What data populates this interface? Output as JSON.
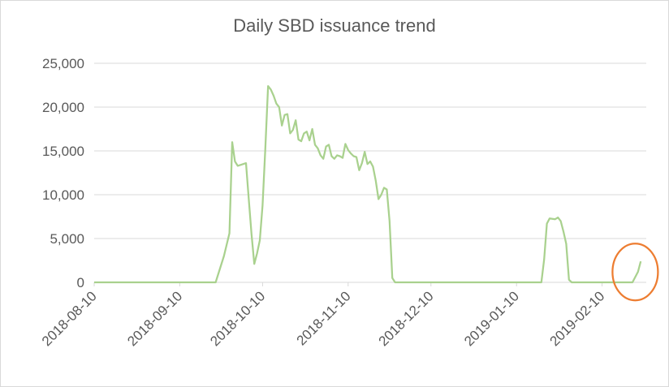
{
  "chart_data": {
    "type": "line",
    "title": "Daily SBD issuance trend",
    "xlabel": "",
    "ylabel": "",
    "ylim": [
      0,
      25000
    ],
    "xlim": [
      "2018-08-10",
      "2019-02-26"
    ],
    "grid": "horizontal",
    "legend": "none",
    "y_ticks": [
      "0",
      "5,000",
      "10,000",
      "15,000",
      "20,000",
      "25,000"
    ],
    "x_ticks": [
      "2018-08-10",
      "2018-09-10",
      "2018-10-10",
      "2018-11-10",
      "2018-12-10",
      "2019-01-10",
      "2019-02-10"
    ],
    "series": [
      {
        "color": "#a9d18e",
        "points": [
          [
            "2018-08-10",
            0
          ],
          [
            "2018-09-23",
            0
          ],
          [
            "2018-09-26",
            3000
          ],
          [
            "2018-09-28",
            5600
          ],
          [
            "2018-09-29",
            16000
          ],
          [
            "2018-09-30",
            13800
          ],
          [
            "2018-10-01",
            13300
          ],
          [
            "2018-10-03",
            13500
          ],
          [
            "2018-10-04",
            13600
          ],
          [
            "2018-10-05",
            9500
          ],
          [
            "2018-10-06",
            5500
          ],
          [
            "2018-10-07",
            2100
          ],
          [
            "2018-10-08",
            3300
          ],
          [
            "2018-10-09",
            4800
          ],
          [
            "2018-10-10",
            8800
          ],
          [
            "2018-10-11",
            15300
          ],
          [
            "2018-10-12",
            22400
          ],
          [
            "2018-10-13",
            22000
          ],
          [
            "2018-10-14",
            21300
          ],
          [
            "2018-10-15",
            20400
          ],
          [
            "2018-10-16",
            20000
          ],
          [
            "2018-10-17",
            17900
          ],
          [
            "2018-10-18",
            19100
          ],
          [
            "2018-10-19",
            19200
          ],
          [
            "2018-10-20",
            17000
          ],
          [
            "2018-10-21",
            17400
          ],
          [
            "2018-10-22",
            18500
          ],
          [
            "2018-10-23",
            16300
          ],
          [
            "2018-10-24",
            16100
          ],
          [
            "2018-10-25",
            17000
          ],
          [
            "2018-10-26",
            17200
          ],
          [
            "2018-10-27",
            16200
          ],
          [
            "2018-10-28",
            17500
          ],
          [
            "2018-10-29",
            15700
          ],
          [
            "2018-10-30",
            15300
          ],
          [
            "2018-10-31",
            14500
          ],
          [
            "2018-11-01",
            14100
          ],
          [
            "2018-11-02",
            15500
          ],
          [
            "2018-11-03",
            15700
          ],
          [
            "2018-11-04",
            14400
          ],
          [
            "2018-11-05",
            14100
          ],
          [
            "2018-11-06",
            14500
          ],
          [
            "2018-11-07",
            14400
          ],
          [
            "2018-11-08",
            14200
          ],
          [
            "2018-11-09",
            15800
          ],
          [
            "2018-11-10",
            15100
          ],
          [
            "2018-11-11",
            14700
          ],
          [
            "2018-11-12",
            14400
          ],
          [
            "2018-11-13",
            14300
          ],
          [
            "2018-11-14",
            12800
          ],
          [
            "2018-11-15",
            13600
          ],
          [
            "2018-11-16",
            14900
          ],
          [
            "2018-11-17",
            13500
          ],
          [
            "2018-11-18",
            13800
          ],
          [
            "2018-11-19",
            13200
          ],
          [
            "2018-11-20",
            11600
          ],
          [
            "2018-11-21",
            9500
          ],
          [
            "2018-11-22",
            10000
          ],
          [
            "2018-11-23",
            10800
          ],
          [
            "2018-11-24",
            10600
          ],
          [
            "2018-11-25",
            7000
          ],
          [
            "2018-11-26",
            500
          ],
          [
            "2018-11-27",
            0
          ],
          [
            "2019-01-19",
            0
          ],
          [
            "2019-01-20",
            2600
          ],
          [
            "2019-01-21",
            6700
          ],
          [
            "2019-01-22",
            7300
          ],
          [
            "2019-01-24",
            7200
          ],
          [
            "2019-01-25",
            7400
          ],
          [
            "2019-01-26",
            7000
          ],
          [
            "2019-01-27",
            5800
          ],
          [
            "2019-01-28",
            4400
          ],
          [
            "2019-01-29",
            300
          ],
          [
            "2019-01-30",
            0
          ],
          [
            "2019-02-21",
            0
          ],
          [
            "2019-02-23",
            1200
          ],
          [
            "2019-02-24",
            2400
          ]
        ]
      }
    ],
    "annotations": [
      {
        "type": "ellipse",
        "color": "#ed7d31",
        "x": "2019-02-22",
        "y": 1000
      }
    ]
  }
}
